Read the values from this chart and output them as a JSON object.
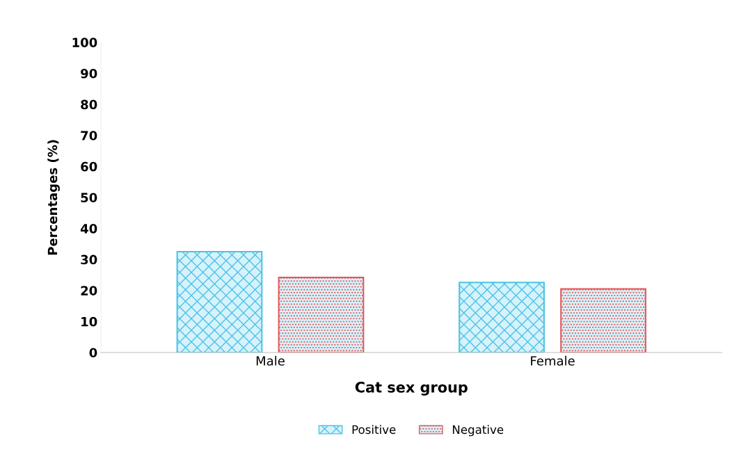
{
  "chart_data": {
    "type": "bar",
    "xlabel": "Cat sex group",
    "ylabel": "Percentages (%)",
    "categories": [
      "Male",
      "Female"
    ],
    "series": [
      {
        "name": "Positive",
        "color": "#4cc3e6",
        "values": [
          32.5,
          22.6
        ]
      },
      {
        "name": "Negative",
        "color": "#e05a5a",
        "values": [
          24.2,
          20.5
        ]
      }
    ],
    "ylim": [
      0,
      100
    ],
    "yticks": [
      0,
      10,
      20,
      30,
      40,
      50,
      60,
      70,
      80,
      90,
      100
    ],
    "grid": false,
    "legend": "bottom"
  }
}
